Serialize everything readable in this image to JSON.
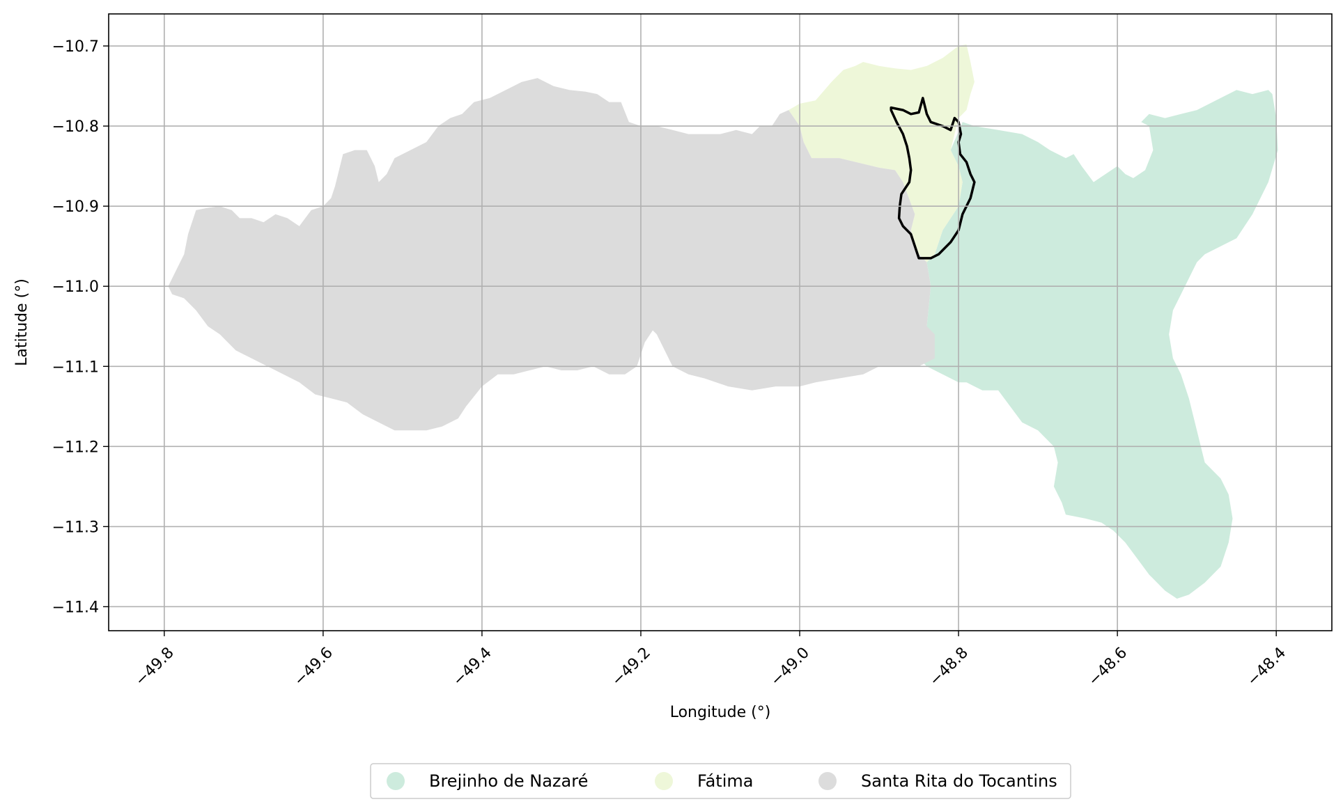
{
  "chart_data": {
    "type": "map",
    "xlabel": "Longitude (°)",
    "ylabel": "Latitude (°)",
    "xlim": [
      -49.87,
      -48.33
    ],
    "ylim": [
      -11.43,
      -10.66
    ],
    "xticks": [
      -49.8,
      -49.6,
      -49.4,
      -49.2,
      -49.0,
      -48.8,
      -48.6,
      -48.4
    ],
    "xtick_labels": [
      "−49.8",
      "−49.6",
      "−49.4",
      "−49.2",
      "−49.0",
      "−48.8",
      "−48.6",
      "−48.4"
    ],
    "yticks": [
      -10.7,
      -10.8,
      -10.9,
      -11.0,
      -11.1,
      -11.2,
      -11.3,
      -11.4
    ],
    "ytick_labels": [
      "−10.7",
      "−10.8",
      "−10.9",
      "−11.0",
      "−11.1",
      "−11.2",
      "−11.3",
      "−11.4"
    ],
    "grid": true,
    "legend_position": "bottom-center",
    "regions": [
      {
        "name": "Brejinho de Nazaré",
        "color": "#cdebdd",
        "polygon": [
          [
            -48.795,
            -10.795
          ],
          [
            -48.78,
            -10.8
          ],
          [
            -48.75,
            -10.805
          ],
          [
            -48.72,
            -10.81
          ],
          [
            -48.7,
            -10.82
          ],
          [
            -48.685,
            -10.83
          ],
          [
            -48.665,
            -10.84
          ],
          [
            -48.655,
            -10.835
          ],
          [
            -48.645,
            -10.85
          ],
          [
            -48.63,
            -10.87
          ],
          [
            -48.615,
            -10.86
          ],
          [
            -48.6,
            -10.85
          ],
          [
            -48.59,
            -10.86
          ],
          [
            -48.58,
            -10.865
          ],
          [
            -48.565,
            -10.855
          ],
          [
            -48.555,
            -10.83
          ],
          [
            -48.56,
            -10.8
          ],
          [
            -48.57,
            -10.795
          ],
          [
            -48.56,
            -10.785
          ],
          [
            -48.54,
            -10.79
          ],
          [
            -48.52,
            -10.785
          ],
          [
            -48.5,
            -10.78
          ],
          [
            -48.47,
            -10.765
          ],
          [
            -48.45,
            -10.755
          ],
          [
            -48.43,
            -10.76
          ],
          [
            -48.41,
            -10.755
          ],
          [
            -48.405,
            -10.76
          ],
          [
            -48.4,
            -10.79
          ],
          [
            -48.398,
            -10.83
          ],
          [
            -48.41,
            -10.87
          ],
          [
            -48.43,
            -10.91
          ],
          [
            -48.45,
            -10.94
          ],
          [
            -48.47,
            -10.95
          ],
          [
            -48.49,
            -10.96
          ],
          [
            -48.5,
            -10.97
          ],
          [
            -48.51,
            -10.99
          ],
          [
            -48.52,
            -11.01
          ],
          [
            -48.53,
            -11.03
          ],
          [
            -48.535,
            -11.06
          ],
          [
            -48.53,
            -11.09
          ],
          [
            -48.52,
            -11.11
          ],
          [
            -48.51,
            -11.14
          ],
          [
            -48.5,
            -11.18
          ],
          [
            -48.49,
            -11.22
          ],
          [
            -48.47,
            -11.24
          ],
          [
            -48.46,
            -11.26
          ],
          [
            -48.455,
            -11.29
          ],
          [
            -48.46,
            -11.32
          ],
          [
            -48.47,
            -11.35
          ],
          [
            -48.49,
            -11.37
          ],
          [
            -48.51,
            -11.385
          ],
          [
            -48.525,
            -11.39
          ],
          [
            -48.54,
            -11.38
          ],
          [
            -48.56,
            -11.36
          ],
          [
            -48.575,
            -11.34
          ],
          [
            -48.59,
            -11.32
          ],
          [
            -48.605,
            -11.305
          ],
          [
            -48.62,
            -11.295
          ],
          [
            -48.64,
            -11.29
          ],
          [
            -48.665,
            -11.285
          ],
          [
            -48.67,
            -11.27
          ],
          [
            -48.68,
            -11.25
          ],
          [
            -48.675,
            -11.22
          ],
          [
            -48.68,
            -11.2
          ],
          [
            -48.7,
            -11.18
          ],
          [
            -48.72,
            -11.17
          ],
          [
            -48.735,
            -11.15
          ],
          [
            -48.75,
            -11.13
          ],
          [
            -48.77,
            -11.13
          ],
          [
            -48.79,
            -11.12
          ],
          [
            -48.8,
            -11.12
          ],
          [
            -48.82,
            -11.11
          ],
          [
            -48.84,
            -11.1
          ],
          [
            -48.85,
            -11.09
          ],
          [
            -48.84,
            -11.05
          ],
          [
            -48.835,
            -11.0
          ],
          [
            -48.84,
            -10.97
          ],
          [
            -48.83,
            -10.96
          ],
          [
            -48.82,
            -10.93
          ],
          [
            -48.8,
            -10.9
          ],
          [
            -48.795,
            -10.87
          ],
          [
            -48.8,
            -10.85
          ],
          [
            -48.81,
            -10.83
          ]
        ]
      },
      {
        "name": "Fátima",
        "color": "#eef7d9",
        "polygon": [
          [
            -49.014,
            -10.78
          ],
          [
            -49.0,
            -10.772
          ],
          [
            -48.98,
            -10.768
          ],
          [
            -48.96,
            -10.745
          ],
          [
            -48.945,
            -10.73
          ],
          [
            -48.93,
            -10.725
          ],
          [
            -48.92,
            -10.72
          ],
          [
            -48.9,
            -10.725
          ],
          [
            -48.88,
            -10.728
          ],
          [
            -48.86,
            -10.73
          ],
          [
            -48.84,
            -10.725
          ],
          [
            -48.82,
            -10.715
          ],
          [
            -48.8,
            -10.7
          ],
          [
            -48.79,
            -10.698
          ],
          [
            -48.785,
            -10.72
          ],
          [
            -48.78,
            -10.745
          ],
          [
            -48.785,
            -10.76
          ],
          [
            -48.79,
            -10.78
          ],
          [
            -48.8,
            -10.79
          ],
          [
            -48.81,
            -10.83
          ],
          [
            -48.8,
            -10.85
          ],
          [
            -48.795,
            -10.87
          ],
          [
            -48.8,
            -10.9
          ],
          [
            -48.82,
            -10.93
          ],
          [
            -48.83,
            -10.96
          ],
          [
            -48.84,
            -10.97
          ],
          [
            -48.85,
            -10.96
          ],
          [
            -48.86,
            -10.93
          ],
          [
            -48.855,
            -10.91
          ],
          [
            -48.87,
            -10.87
          ],
          [
            -48.88,
            -10.855
          ],
          [
            -48.9,
            -10.852
          ],
          [
            -48.95,
            -10.84
          ],
          [
            -48.985,
            -10.84
          ],
          [
            -48.995,
            -10.82
          ],
          [
            -49.0,
            -10.8
          ]
        ]
      },
      {
        "name": "Santa Rita do Tocantins",
        "color": "#dcdcdc",
        "polygon": [
          [
            -49.795,
            -11.0
          ],
          [
            -49.79,
            -10.99
          ],
          [
            -49.775,
            -10.96
          ],
          [
            -49.77,
            -10.935
          ],
          [
            -49.76,
            -10.905
          ],
          [
            -49.745,
            -10.902
          ],
          [
            -49.73,
            -10.9
          ],
          [
            -49.715,
            -10.905
          ],
          [
            -49.705,
            -10.915
          ],
          [
            -49.69,
            -10.915
          ],
          [
            -49.675,
            -10.92
          ],
          [
            -49.66,
            -10.91
          ],
          [
            -49.645,
            -10.915
          ],
          [
            -49.63,
            -10.925
          ],
          [
            -49.615,
            -10.905
          ],
          [
            -49.6,
            -10.9
          ],
          [
            -49.59,
            -10.89
          ],
          [
            -49.585,
            -10.875
          ],
          [
            -49.58,
            -10.855
          ],
          [
            -49.575,
            -10.835
          ],
          [
            -49.56,
            -10.83
          ],
          [
            -49.545,
            -10.83
          ],
          [
            -49.535,
            -10.85
          ],
          [
            -49.53,
            -10.87
          ],
          [
            -49.52,
            -10.86
          ],
          [
            -49.51,
            -10.84
          ],
          [
            -49.49,
            -10.83
          ],
          [
            -49.47,
            -10.82
          ],
          [
            -49.455,
            -10.8
          ],
          [
            -49.44,
            -10.79
          ],
          [
            -49.425,
            -10.785
          ],
          [
            -49.41,
            -10.77
          ],
          [
            -49.39,
            -10.765
          ],
          [
            -49.37,
            -10.755
          ],
          [
            -49.35,
            -10.745
          ],
          [
            -49.33,
            -10.74
          ],
          [
            -49.31,
            -10.75
          ],
          [
            -49.29,
            -10.755
          ],
          [
            -49.27,
            -10.757
          ],
          [
            -49.255,
            -10.76
          ],
          [
            -49.24,
            -10.77
          ],
          [
            -49.225,
            -10.77
          ],
          [
            -49.215,
            -10.795
          ],
          [
            -49.2,
            -10.8
          ],
          [
            -49.18,
            -10.8
          ],
          [
            -49.16,
            -10.805
          ],
          [
            -49.14,
            -10.81
          ],
          [
            -49.12,
            -10.81
          ],
          [
            -49.1,
            -10.81
          ],
          [
            -49.08,
            -10.805
          ],
          [
            -49.06,
            -10.81
          ],
          [
            -49.05,
            -10.8
          ],
          [
            -49.035,
            -10.8
          ],
          [
            -49.025,
            -10.785
          ],
          [
            -49.014,
            -10.78
          ],
          [
            -49.0,
            -10.8
          ],
          [
            -48.995,
            -10.82
          ],
          [
            -48.985,
            -10.84
          ],
          [
            -48.95,
            -10.84
          ],
          [
            -48.9,
            -10.852
          ],
          [
            -48.88,
            -10.855
          ],
          [
            -48.87,
            -10.87
          ],
          [
            -48.855,
            -10.91
          ],
          [
            -48.86,
            -10.93
          ],
          [
            -48.85,
            -10.96
          ],
          [
            -48.84,
            -10.97
          ],
          [
            -48.835,
            -11.0
          ],
          [
            -48.84,
            -11.05
          ],
          [
            -48.83,
            -11.06
          ],
          [
            -48.83,
            -11.09
          ],
          [
            -48.85,
            -11.1
          ],
          [
            -48.88,
            -11.1
          ],
          [
            -48.9,
            -11.1
          ],
          [
            -48.92,
            -11.11
          ],
          [
            -48.95,
            -11.115
          ],
          [
            -48.98,
            -11.12
          ],
          [
            -49.0,
            -11.125
          ],
          [
            -49.03,
            -11.125
          ],
          [
            -49.06,
            -11.13
          ],
          [
            -49.09,
            -11.125
          ],
          [
            -49.12,
            -11.115
          ],
          [
            -49.14,
            -11.11
          ],
          [
            -49.16,
            -11.1
          ],
          [
            -49.17,
            -11.08
          ],
          [
            -49.18,
            -11.06
          ],
          [
            -49.185,
            -11.055
          ],
          [
            -49.195,
            -11.07
          ],
          [
            -49.205,
            -11.1
          ],
          [
            -49.22,
            -11.11
          ],
          [
            -49.24,
            -11.11
          ],
          [
            -49.26,
            -11.1
          ],
          [
            -49.28,
            -11.105
          ],
          [
            -49.3,
            -11.105
          ],
          [
            -49.32,
            -11.1
          ],
          [
            -49.34,
            -11.105
          ],
          [
            -49.36,
            -11.11
          ],
          [
            -49.38,
            -11.11
          ],
          [
            -49.4,
            -11.125
          ],
          [
            -49.42,
            -11.15
          ],
          [
            -49.43,
            -11.165
          ],
          [
            -49.45,
            -11.175
          ],
          [
            -49.47,
            -11.18
          ],
          [
            -49.49,
            -11.18
          ],
          [
            -49.51,
            -11.18
          ],
          [
            -49.53,
            -11.17
          ],
          [
            -49.55,
            -11.16
          ],
          [
            -49.57,
            -11.145
          ],
          [
            -49.59,
            -11.14
          ],
          [
            -49.61,
            -11.135
          ],
          [
            -49.63,
            -11.12
          ],
          [
            -49.65,
            -11.11
          ],
          [
            -49.67,
            -11.1
          ],
          [
            -49.69,
            -11.09
          ],
          [
            -49.71,
            -11.08
          ],
          [
            -49.73,
            -11.06
          ],
          [
            -49.745,
            -11.05
          ],
          [
            -49.76,
            -11.03
          ],
          [
            -49.775,
            -11.015
          ],
          [
            -49.79,
            -11.01
          ]
        ]
      }
    ],
    "outline": [
      [
        -48.885,
        -10.777
      ],
      [
        -48.87,
        -10.78
      ],
      [
        -48.86,
        -10.785
      ],
      [
        -48.85,
        -10.783
      ],
      [
        -48.845,
        -10.765
      ],
      [
        -48.84,
        -10.785
      ],
      [
        -48.835,
        -10.795
      ],
      [
        -48.82,
        -10.8
      ],
      [
        -48.81,
        -10.805
      ],
      [
        -48.805,
        -10.79
      ],
      [
        -48.8,
        -10.795
      ],
      [
        -48.797,
        -10.81
      ],
      [
        -48.8,
        -10.82
      ],
      [
        -48.798,
        -10.835
      ],
      [
        -48.79,
        -10.845
      ],
      [
        -48.785,
        -10.86
      ],
      [
        -48.78,
        -10.87
      ],
      [
        -48.785,
        -10.89
      ],
      [
        -48.795,
        -10.91
      ],
      [
        -48.8,
        -10.93
      ],
      [
        -48.81,
        -10.945
      ],
      [
        -48.82,
        -10.955
      ],
      [
        -48.825,
        -10.96
      ],
      [
        -48.835,
        -10.965
      ],
      [
        -48.85,
        -10.965
      ],
      [
        -48.855,
        -10.95
      ],
      [
        -48.86,
        -10.935
      ],
      [
        -48.87,
        -10.925
      ],
      [
        -48.875,
        -10.915
      ],
      [
        -48.874,
        -10.9
      ],
      [
        -48.872,
        -10.885
      ],
      [
        -48.862,
        -10.87
      ],
      [
        -48.86,
        -10.855
      ],
      [
        -48.862,
        -10.84
      ],
      [
        -48.865,
        -10.825
      ],
      [
        -48.87,
        -10.81
      ],
      [
        -48.878,
        -10.795
      ],
      [
        -48.885,
        -10.78
      ]
    ],
    "outline_color": "#000000",
    "legend": [
      {
        "label": "Brejinho de Nazaré",
        "color": "#cdebdd"
      },
      {
        "label": "Fátima",
        "color": "#eef7d9"
      },
      {
        "label": "Santa Rita do Tocantins",
        "color": "#dcdcdc"
      }
    ]
  }
}
